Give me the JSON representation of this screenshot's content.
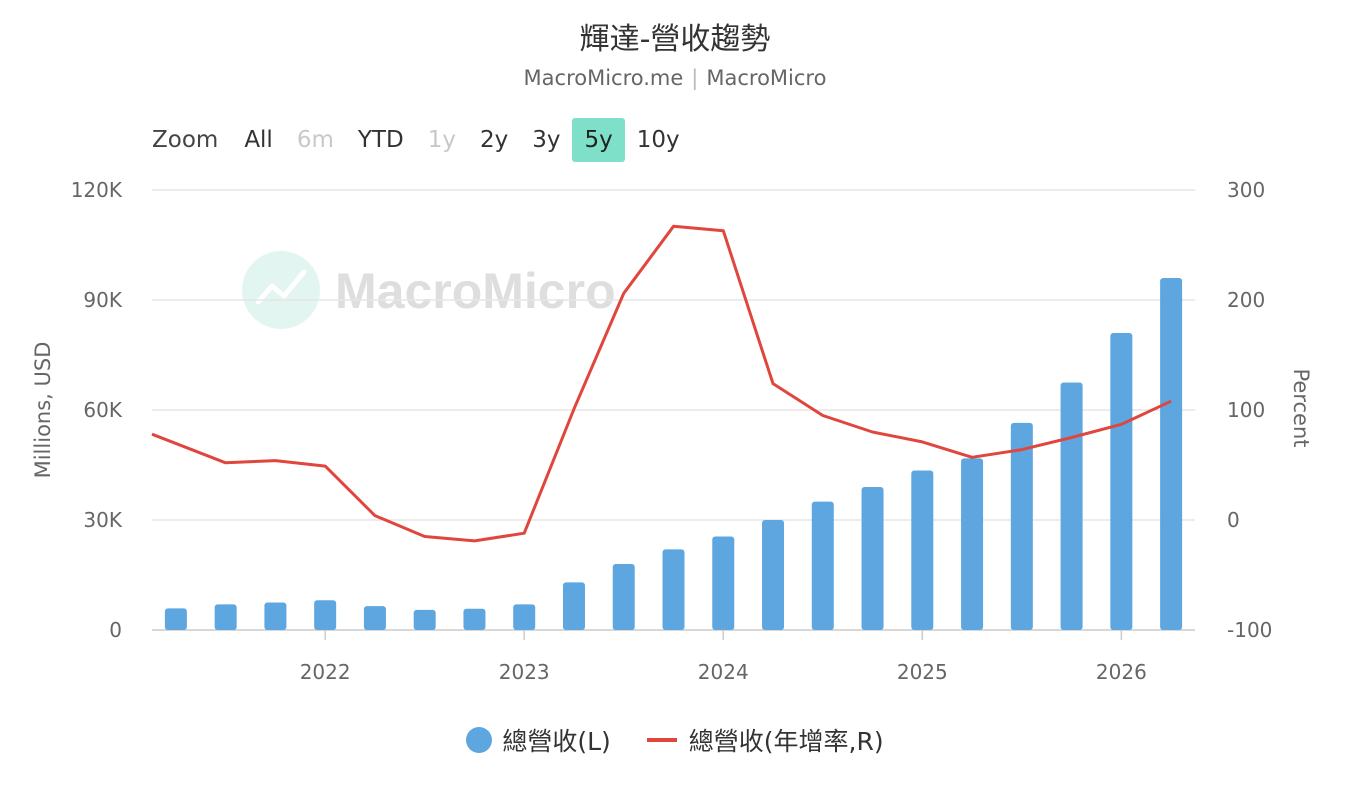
{
  "header": {
    "title": "輝達-營收趨勢",
    "source_left": "MacroMicro.me",
    "source_sep": "|",
    "source_right": "MacroMicro"
  },
  "watermark": {
    "text": "MacroMicro"
  },
  "range_selector": {
    "zoom_label": "Zoom",
    "buttons": [
      {
        "label": "All",
        "state": "enabled"
      },
      {
        "label": "6m",
        "state": "disabled"
      },
      {
        "label": "YTD",
        "state": "enabled"
      },
      {
        "label": "1y",
        "state": "disabled"
      },
      {
        "label": "2y",
        "state": "enabled"
      },
      {
        "label": "3y",
        "state": "enabled"
      },
      {
        "label": "5y",
        "state": "active"
      },
      {
        "label": "10y",
        "state": "enabled"
      }
    ]
  },
  "colors": {
    "bar": "#5ea6e0",
    "line": "#e0463e",
    "grid": "#e6e6e6",
    "axis_text": "#666666",
    "watermark": "#cfeee6"
  },
  "chart_data": {
    "type": "bar",
    "x_axis": {
      "ticks": [
        "2022",
        "2023",
        "2024",
        "2025",
        "2026"
      ],
      "tick_values": [
        2022,
        2023,
        2024,
        2025,
        2026
      ],
      "range": [
        2021.13,
        2026.37
      ]
    },
    "y_left": {
      "label": "Millions, USD",
      "ticks": [
        "0",
        "30K",
        "60K",
        "90K",
        "120K"
      ],
      "tick_values": [
        0,
        30000,
        60000,
        90000,
        120000
      ],
      "range": [
        0,
        120000
      ]
    },
    "y_right": {
      "label": "Percent",
      "ticks": [
        "-100",
        "0",
        "100",
        "200",
        "300"
      ],
      "tick_values": [
        -100,
        0,
        100,
        200,
        300
      ],
      "range": [
        -100,
        300
      ]
    },
    "series": [
      {
        "name": "總營收(L)",
        "type": "bar",
        "axis": "left",
        "x": [
          2021.25,
          2021.5,
          2021.75,
          2022.0,
          2022.25,
          2022.5,
          2022.75,
          2023.0,
          2023.25,
          2023.5,
          2023.75,
          2024.0,
          2024.25,
          2024.5,
          2024.75,
          2025.0,
          2025.25,
          2025.5,
          2025.75,
          2026.0,
          2026.25
        ],
        "values": [
          5900,
          7000,
          7500,
          8100,
          6500,
          5500,
          5800,
          7000,
          13000,
          18000,
          22000,
          25500,
          30000,
          35000,
          39000,
          43500,
          46800,
          56500,
          67500,
          81000,
          96000
        ]
      },
      {
        "name": "總營收(年增率,R)",
        "type": "line",
        "axis": "right",
        "x": [
          2021.13,
          2021.5,
          2021.75,
          2022.0,
          2022.25,
          2022.5,
          2022.75,
          2023.0,
          2023.25,
          2023.5,
          2023.75,
          2024.0,
          2024.25,
          2024.5,
          2024.75,
          2025.0,
          2025.25,
          2025.5,
          2025.75,
          2026.0,
          2026.25
        ],
        "values": [
          78,
          52,
          54,
          49,
          4,
          -15,
          -19,
          -12,
          101,
          206,
          267,
          263,
          124,
          95,
          80,
          71,
          57,
          64,
          75,
          87,
          108
        ]
      }
    ],
    "legend_position": "bottom",
    "grid": true
  },
  "legend": {
    "items": [
      {
        "label": "總營收(L)",
        "kind": "dot"
      },
      {
        "label": "總營收(年增率,R)",
        "kind": "line"
      }
    ]
  }
}
